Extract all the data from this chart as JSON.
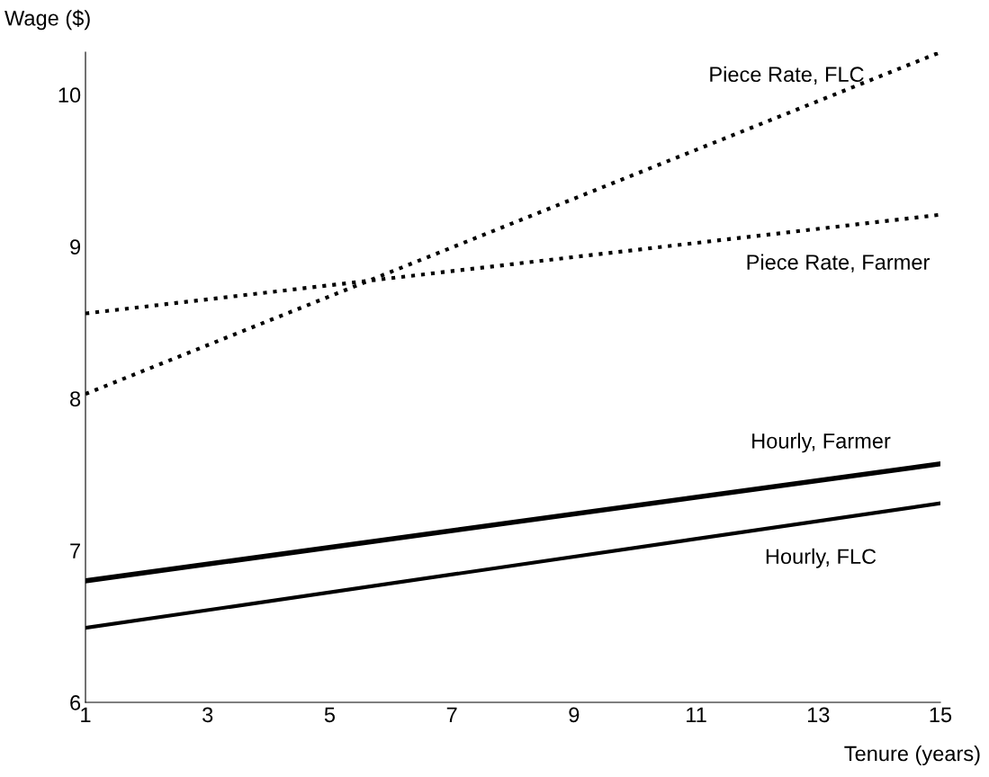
{
  "chart_data": {
    "type": "line",
    "xlabel": "Tenure (years)",
    "ylabel": "Wage ($)",
    "x": [
      1,
      15
    ],
    "series": [
      {
        "name": "Piece Rate, FLC",
        "color": "#000000",
        "line_style": "dotted",
        "values": [
          8.03,
          10.28
        ]
      },
      {
        "name": "Piece Rate, Farmer",
        "color": "#000000",
        "line_style": "dotted",
        "values": [
          8.56,
          9.21
        ]
      },
      {
        "name": "Hourly, Farmer",
        "color": "#000000",
        "line_style": "solid",
        "values": [
          6.8,
          7.57
        ]
      },
      {
        "name": "Hourly, FLC",
        "color": "#000000",
        "line_style": "solid",
        "values": [
          6.49,
          7.31
        ]
      }
    ],
    "xlim": [
      1,
      15
    ],
    "xticks": [
      1,
      3,
      5,
      7,
      9,
      11,
      13,
      15
    ],
    "ylim": [
      6,
      10.28
    ],
    "yticks": [
      6,
      7,
      8,
      9,
      10
    ],
    "grid": false,
    "legend": false
  }
}
